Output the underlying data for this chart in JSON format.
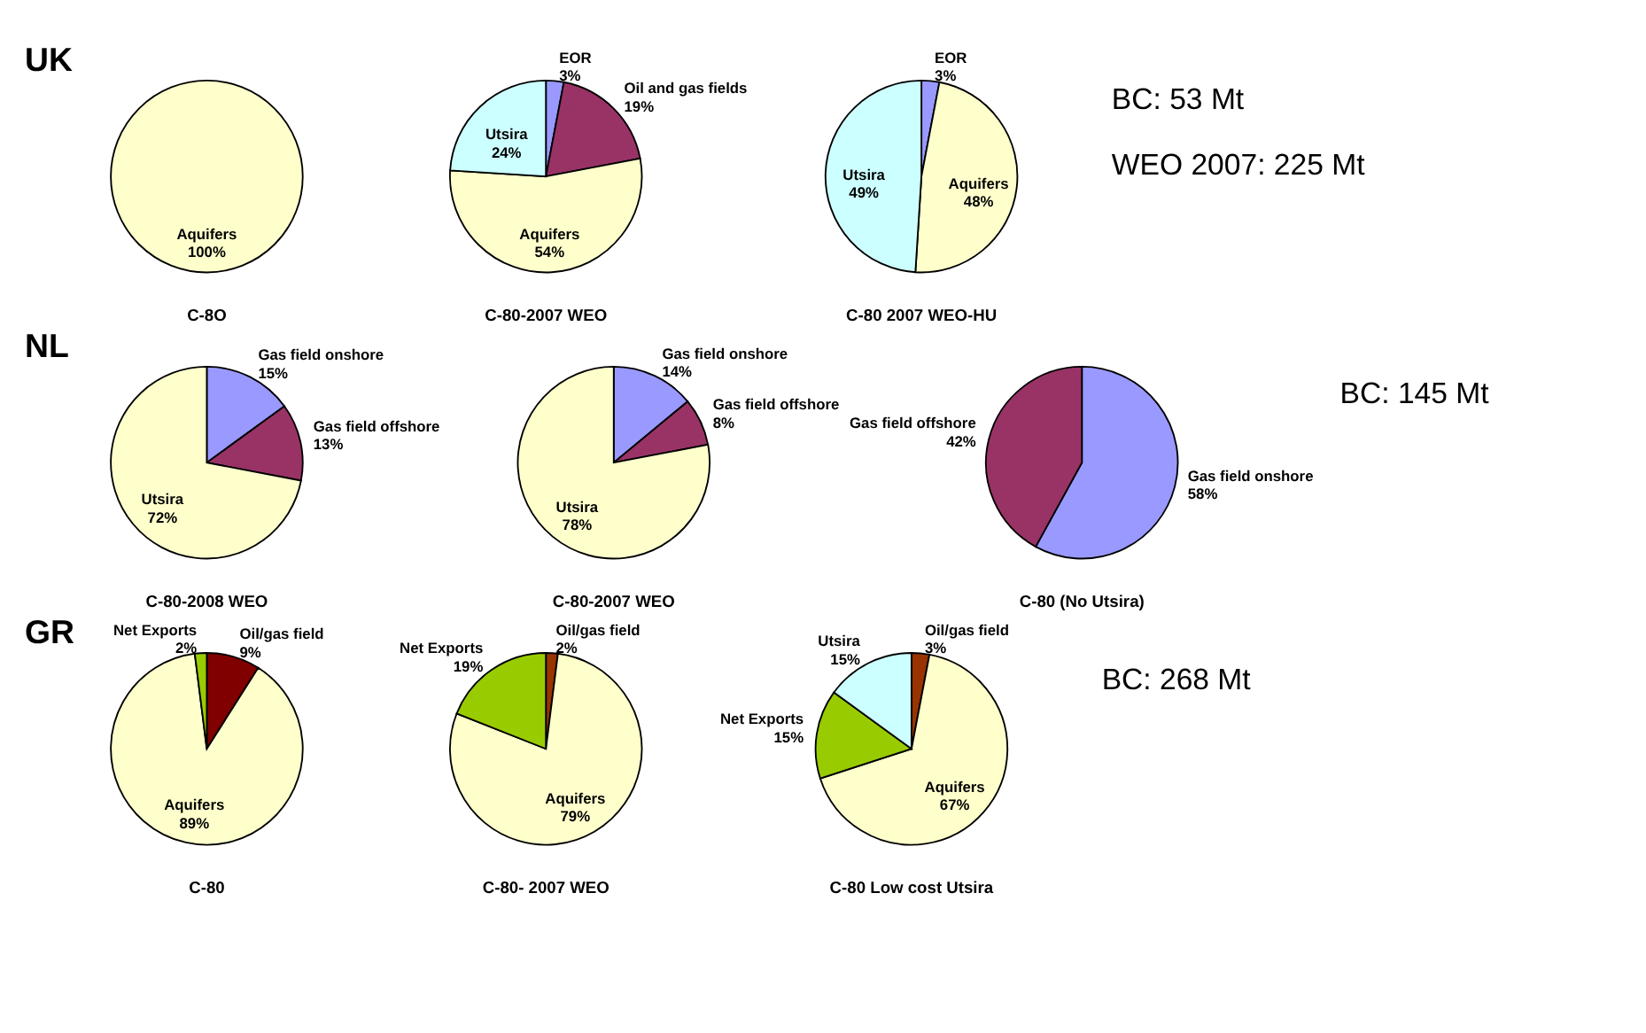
{
  "chart_data": [
    {
      "type": "pie",
      "title": "C-8O",
      "annotations": [
        "UK"
      ],
      "categories": [
        "Aquifers"
      ],
      "values": [
        100
      ],
      "value_labels": [
        "100%"
      ],
      "colors": [
        "#ffffcc"
      ]
    },
    {
      "type": "pie",
      "title": "C-80-2007 WEO",
      "categories": [
        "EOR",
        "Oil and gas fields",
        "Aquifers",
        "Utsira"
      ],
      "values": [
        3,
        19,
        54,
        24
      ],
      "value_labels": [
        "3%",
        "19%",
        "54%",
        "24%"
      ],
      "colors": [
        "#9999ff",
        "#993366",
        "#ffffcc",
        "#ccffff"
      ]
    },
    {
      "type": "pie",
      "title": "C-80 2007 WEO-HU",
      "categories": [
        "EOR",
        "Aquifers",
        "Utsira"
      ],
      "values": [
        3,
        48,
        49
      ],
      "value_labels": [
        "3%",
        "48%",
        "49%"
      ],
      "colors": [
        "#9999ff",
        "#ffffcc",
        "#ccffff"
      ]
    },
    {
      "type": "other",
      "annotations": [
        "BC: 53 Mt",
        "WEO 2007: 225 Mt"
      ]
    },
    {
      "type": "pie",
      "title": "C-80-2008 WEO",
      "annotations": [
        "NL"
      ],
      "categories": [
        "Gas field onshore",
        "Gas field offshore",
        "Utsira"
      ],
      "values": [
        15,
        13,
        72
      ],
      "value_labels": [
        "15%",
        "13%",
        "72%"
      ],
      "colors": [
        "#9999ff",
        "#993366",
        "#ffffcc"
      ]
    },
    {
      "type": "pie",
      "title": "C-80-2007 WEO",
      "categories": [
        "Gas field onshore",
        "Gas field offshore",
        "Utsira"
      ],
      "values": [
        14,
        8,
        78
      ],
      "value_labels": [
        "14%",
        "8%",
        "78%"
      ],
      "colors": [
        "#9999ff",
        "#993366",
        "#ffffcc"
      ]
    },
    {
      "type": "pie",
      "title": "C-80 (No Utsira)",
      "categories": [
        "Gas field onshore",
        "Gas field offshore"
      ],
      "values": [
        58,
        42
      ],
      "value_labels": [
        "58%",
        "42%"
      ],
      "colors": [
        "#9999ff",
        "#993366"
      ]
    },
    {
      "type": "other",
      "annotations": [
        "BC: 145 Mt"
      ]
    },
    {
      "type": "pie",
      "title": "C-80",
      "annotations": [
        "GR"
      ],
      "categories": [
        "Oil/gas field",
        "Aquifers",
        "Net Exports"
      ],
      "values": [
        9,
        89,
        2
      ],
      "value_labels": [
        "9%",
        "89%",
        "2%"
      ],
      "colors": [
        "#800000",
        "#ffffcc",
        "#99cc00"
      ]
    },
    {
      "type": "pie",
      "title": "C-80- 2007 WEO",
      "categories": [
        "Oil/gas field",
        "Aquifers",
        "Net Exports"
      ],
      "values": [
        2,
        79,
        19
      ],
      "value_labels": [
        "2%",
        "79%",
        "19%"
      ],
      "colors": [
        "#993300",
        "#ffffcc",
        "#99cc00"
      ]
    },
    {
      "type": "pie",
      "title": "C-80 Low cost Utsira",
      "categories": [
        "Oil/gas field",
        "Aquifers",
        "Net Exports",
        "Utsira"
      ],
      "values": [
        3,
        67,
        15,
        15
      ],
      "value_labels": [
        "3%",
        "67%",
        "15%",
        "15%"
      ],
      "colors": [
        "#993300",
        "#ffffcc",
        "#99cc00",
        "#ccffff"
      ]
    },
    {
      "type": "other",
      "annotations": [
        "BC: 268 Mt"
      ]
    }
  ]
}
